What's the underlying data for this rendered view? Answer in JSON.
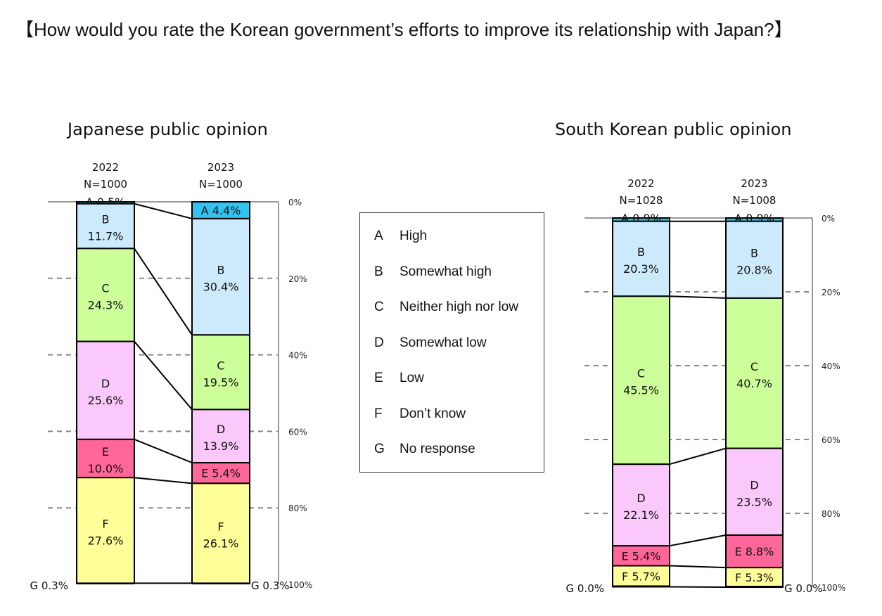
{
  "title": "【How would you rate the Korean government’s efforts to improve its relationship with Japan?】",
  "legend": [
    {
      "key": "A",
      "label": "High"
    },
    {
      "key": "B",
      "label": "Somewhat high"
    },
    {
      "key": "C",
      "label": "Neither high nor low"
    },
    {
      "key": "D",
      "label": "Somewhat low"
    },
    {
      "key": "E",
      "label": "Low"
    },
    {
      "key": "F",
      "label": "Don’t know"
    },
    {
      "key": "G",
      "label": "No response"
    }
  ],
  "colors": {
    "A": "#33c3f0",
    "B": "#cdeafd",
    "C": "#ccff99",
    "D": "#fbc8fb",
    "E": "#ff6699",
    "F": "#ffff99",
    "G": "#222222"
  },
  "chart_data": [
    {
      "type": "bar",
      "stacked": true,
      "title": "Japanese public opinion",
      "categories": [
        "A",
        "B",
        "C",
        "D",
        "E",
        "F",
        "G"
      ],
      "ylim": [
        0,
        100
      ],
      "yticks": [
        "0%",
        "20%",
        "40%",
        "60%",
        "80%",
        "100%"
      ],
      "grid": true,
      "series": [
        {
          "year": "2022",
          "n": "N=1000",
          "values": [
            0.5,
            11.7,
            24.3,
            25.6,
            10.0,
            27.6,
            0.3
          ]
        },
        {
          "year": "2023",
          "n": "N=1000",
          "values": [
            4.4,
            30.4,
            19.5,
            13.9,
            5.4,
            26.1,
            0.3
          ]
        }
      ]
    },
    {
      "type": "bar",
      "stacked": true,
      "title": "South Korean public opinion",
      "categories": [
        "A",
        "B",
        "C",
        "D",
        "E",
        "F",
        "G"
      ],
      "ylim": [
        0,
        100
      ],
      "yticks": [
        "0%",
        "20%",
        "40%",
        "60%",
        "80%",
        "100%"
      ],
      "grid": true,
      "series": [
        {
          "year": "2022",
          "n": "N=1028",
          "values": [
            0.9,
            20.3,
            45.5,
            22.1,
            5.4,
            5.7,
            0.0
          ]
        },
        {
          "year": "2023",
          "n": "N=1008",
          "values": [
            0.9,
            20.8,
            40.7,
            23.5,
            8.8,
            5.3,
            0.0
          ]
        }
      ]
    }
  ]
}
